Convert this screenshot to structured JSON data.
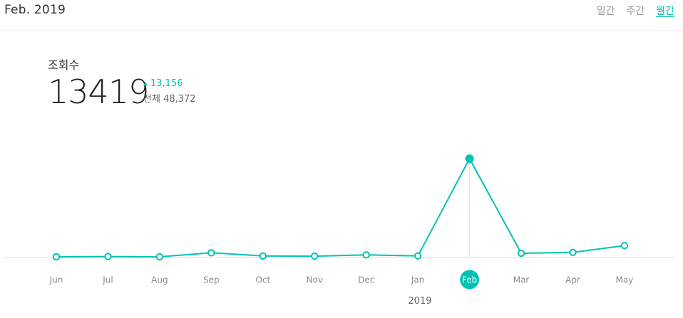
{
  "header": {
    "period_title": "Feb. 2019",
    "tabs": [
      {
        "label": "일간",
        "active": false
      },
      {
        "label": "주간",
        "active": false
      },
      {
        "label": "월간",
        "active": true
      }
    ]
  },
  "stats": {
    "label": "조회수",
    "value": "13419",
    "delta": "13,156",
    "total": "전체 48,372"
  },
  "colors": {
    "accent": "#00c3b5",
    "axis": "#dddddd",
    "tick_text": "#888888"
  },
  "chart_data": {
    "type": "line",
    "categories": [
      "Jun",
      "Jul",
      "Aug",
      "Sep",
      "Oct",
      "Nov",
      "Dec",
      "Jan",
      "Feb",
      "Mar",
      "Apr",
      "May"
    ],
    "values": [
      10,
      40,
      0,
      550,
      120,
      90,
      260,
      130,
      13419,
      490,
      600,
      1540
    ],
    "selected_index": 8,
    "year_label": "2019",
    "ylim": [
      0,
      13419
    ]
  }
}
